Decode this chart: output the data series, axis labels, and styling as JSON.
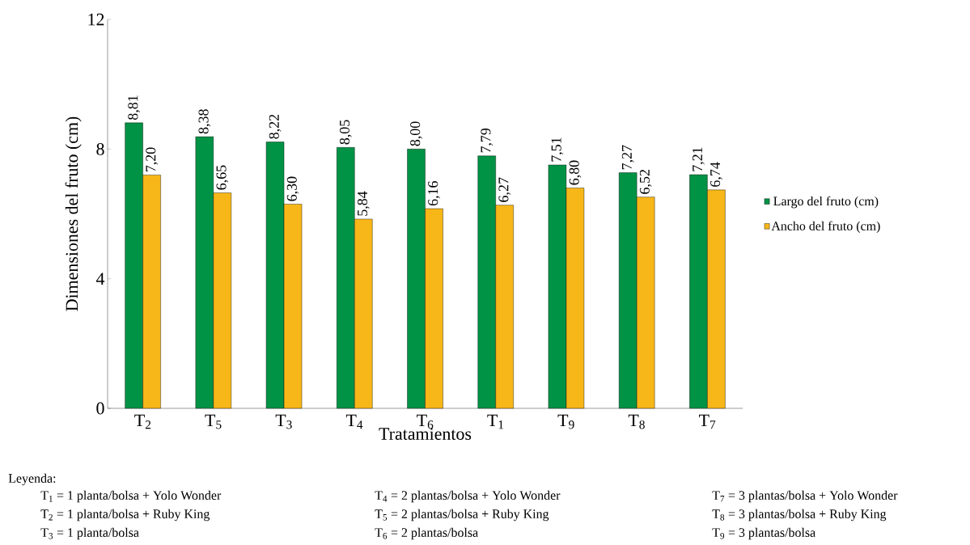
{
  "chart_data": {
    "type": "bar",
    "xlabel": "Tratamientos",
    "ylabel": "Dimensiones del fruto (cm)",
    "categories": [
      "T$_{2}$",
      "T$_{5}$",
      "T$_{3}$",
      "T$_{4}$",
      "T$_{6}$",
      "T$_{1}$",
      "T$_{9}$",
      "T$_{8}$",
      "T$_{7}$"
    ],
    "series": [
      {
        "name": "Largo del fruto (cm)",
        "color": "#009245",
        "values": [
          8.81,
          8.38,
          8.22,
          8.05,
          8.0,
          7.79,
          7.51,
          7.27,
          7.21
        ],
        "value_labels": [
          "8,81",
          "8,38",
          "8,22",
          "8,05",
          "8,00",
          "7,79",
          "7,51",
          "7,27",
          "7,21"
        ]
      },
      {
        "name": "Ancho del fruto (cm)",
        "color": "#f7b718",
        "values": [
          7.2,
          6.65,
          6.3,
          5.84,
          6.16,
          6.27,
          6.8,
          6.52,
          6.74
        ],
        "value_labels": [
          "7,20",
          "6,65",
          "6,30",
          "5,84",
          "6,16",
          "6,27",
          "6,80",
          "6,52",
          "6,74"
        ]
      }
    ],
    "ylim": [
      0,
      12
    ],
    "yticks": [
      0,
      4,
      8,
      12
    ],
    "legend": "right",
    "annotations": [
      "Leyenda:",
      "T$_{1}$ = 1 planta/bolsa + Yolo Wonder",
      "T$_{2}$ = 1 planta/bolsa + Ruby King",
      "T$_{3}$ = 1 planta/bolsa",
      "T$_{4}$ = 2 plantas/bolsa + Yolo Wonder",
      "T$_{5}$ = 2 plantas/bolsa + Ruby King",
      "T$_{6}$ = 2 plantas/bolsa",
      "T$_{7}$ = 3 plantas/bolsa + Yolo Wonder",
      "T$_{8}$ = 3 plantas/bolsa + Ruby King",
      "T$_{9}$ = 3 plantas/bolsa"
    ]
  }
}
